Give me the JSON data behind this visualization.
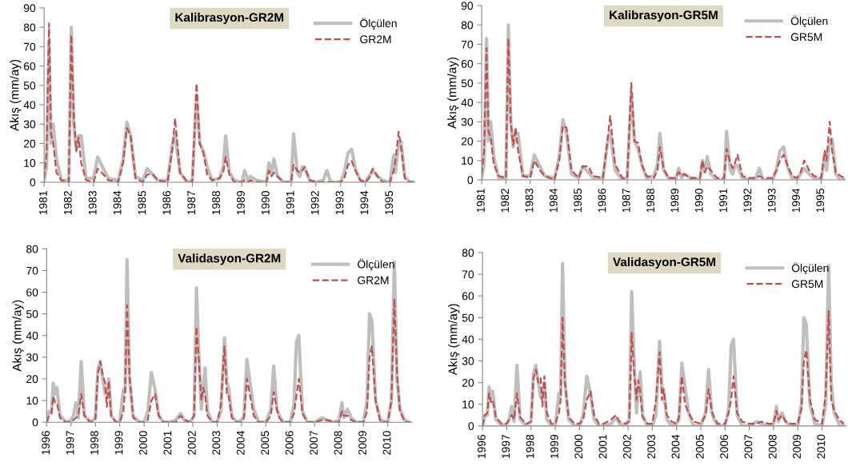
{
  "chart_data": [
    {
      "type": "line",
      "title": "Kalibrasyon-GR2M",
      "ylabel": "Akış (mm/ay)",
      "xlim": [
        1981,
        1996
      ],
      "ylim": [
        0,
        90
      ],
      "yticks": [
        0,
        10,
        20,
        30,
        40,
        50,
        60,
        70,
        80,
        90
      ],
      "xticks": [
        {
          "value": 1981,
          "label": "1981"
        },
        {
          "value": 1982,
          "label": "1982"
        },
        {
          "value": 1983,
          "label": "1983"
        },
        {
          "value": 1984,
          "label": "1984"
        },
        {
          "value": 1985,
          "label": "1985"
        },
        {
          "value": 1986,
          "label": "1986"
        },
        {
          "value": 1987,
          "label": "1987"
        },
        {
          "value": 1988,
          "label": "1988"
        },
        {
          "value": 1989,
          "label": "1989"
        },
        {
          "value": 1990,
          "label": "1990"
        },
        {
          "value": 1991,
          "label": "1991"
        },
        {
          "value": 1992,
          "label": "1992"
        },
        {
          "value": 1993,
          "label": "1993"
        },
        {
          "value": 1994,
          "label": "1994"
        },
        {
          "value": 1995,
          "label": "1995"
        }
      ],
      "grid": false,
      "legend": "top right",
      "x": [
        1981.0,
        1981.1,
        1981.2,
        1981.28,
        1981.37,
        1981.5,
        1981.7,
        1982.0,
        1982.1,
        1982.2,
        1982.3,
        1982.4,
        1982.5,
        1982.7,
        1983.0,
        1983.17,
        1983.4,
        1983.6,
        1984.0,
        1984.2,
        1984.35,
        1984.5,
        1984.7,
        1985.0,
        1985.17,
        1985.4,
        1985.6,
        1986.0,
        1986.2,
        1986.3,
        1986.5,
        1986.8,
        1987.0,
        1987.17,
        1987.3,
        1987.45,
        1987.6,
        1987.8,
        1988.1,
        1988.25,
        1988.35,
        1988.5,
        1988.7,
        1989.0,
        1989.12,
        1989.25,
        1989.35,
        1989.6,
        1990.0,
        1990.1,
        1990.2,
        1990.3,
        1990.45,
        1990.7,
        1991.0,
        1991.1,
        1991.25,
        1991.35,
        1991.45,
        1991.55,
        1991.75,
        1992.0,
        1992.3,
        1992.45,
        1992.6,
        1993.0,
        1993.15,
        1993.3,
        1993.45,
        1993.6,
        1993.8,
        1994.0,
        1994.15,
        1994.3,
        1994.5,
        1994.7,
        1995.0,
        1995.15,
        1995.22,
        1995.35,
        1995.45,
        1995.6,
        1995.8,
        1995.95
      ],
      "series": [
        {
          "name": "Ölçülen",
          "color": "#bfbfbf",
          "line_style": "solid",
          "values": [
            1,
            8,
            73,
            20,
            30,
            12,
            1,
            1,
            80,
            30,
            17,
            24,
            24,
            2,
            2,
            13,
            7,
            2,
            1,
            12,
            31,
            24,
            3,
            1,
            7,
            4,
            1,
            1,
            20,
            25,
            5,
            0,
            1,
            45,
            20,
            16,
            8,
            1,
            2,
            8,
            24,
            5,
            1,
            0,
            6,
            1,
            3,
            1,
            0,
            10,
            4,
            12,
            3,
            0,
            0,
            25,
            5,
            3,
            8,
            7,
            1,
            0,
            1,
            6,
            0,
            0,
            5,
            15,
            17,
            7,
            1,
            0,
            3,
            6,
            3,
            1,
            0,
            14,
            5,
            20,
            21,
            3,
            0,
            0
          ]
        },
        {
          "name": "GR2M",
          "color": "#c0504d",
          "line_style": "dashed",
          "values": [
            2,
            15,
            82,
            25,
            20,
            5,
            1,
            0,
            76,
            35,
            16,
            23,
            10,
            1,
            0,
            7,
            4,
            1,
            0,
            10,
            28,
            24,
            2,
            0,
            4,
            4,
            1,
            0,
            18,
            33,
            5,
            0,
            0,
            51,
            20,
            15,
            4,
            1,
            2,
            5,
            13,
            4,
            0,
            0,
            1,
            0,
            1,
            0,
            0,
            6,
            3,
            5,
            3,
            0,
            0,
            9,
            6,
            5,
            6,
            8,
            1,
            0,
            0,
            0,
            0,
            0,
            2,
            9,
            11,
            6,
            1,
            0,
            2,
            7,
            3,
            0,
            0,
            6,
            11,
            26,
            18,
            2,
            0,
            0
          ]
        }
      ]
    },
    {
      "type": "line",
      "title": "Kalibrasyon-GR5M",
      "ylabel": "Akış (mm/ay)",
      "xlim": [
        1981,
        1996
      ],
      "ylim": [
        0,
        90
      ],
      "yticks": [
        0,
        10,
        20,
        30,
        40,
        50,
        60,
        70,
        80,
        90
      ],
      "xticks": [
        {
          "value": 1981,
          "label": "1981"
        },
        {
          "value": 1982,
          "label": "1982"
        },
        {
          "value": 1983,
          "label": "1983"
        },
        {
          "value": 1984,
          "label": "1984"
        },
        {
          "value": 1985,
          "label": "1985"
        },
        {
          "value": 1986,
          "label": "1986"
        },
        {
          "value": 1987,
          "label": "1987"
        },
        {
          "value": 1988,
          "label": "1988"
        },
        {
          "value": 1989,
          "label": "1989"
        },
        {
          "value": 1990,
          "label": "1990"
        },
        {
          "value": 1991,
          "label": "1991"
        },
        {
          "value": 1992,
          "label": "1992"
        },
        {
          "value": 1993,
          "label": "1993"
        },
        {
          "value": 1994,
          "label": "1994"
        },
        {
          "value": 1995,
          "label": "1995"
        }
      ],
      "grid": false,
      "legend": "top right",
      "x": [
        1981.0,
        1981.1,
        1981.2,
        1981.28,
        1981.37,
        1981.5,
        1981.7,
        1982.0,
        1982.1,
        1982.2,
        1982.3,
        1982.4,
        1982.5,
        1982.7,
        1983.0,
        1983.17,
        1983.4,
        1983.6,
        1984.0,
        1984.2,
        1984.35,
        1984.5,
        1984.7,
        1985.0,
        1985.17,
        1985.4,
        1985.6,
        1986.0,
        1986.2,
        1986.3,
        1986.5,
        1986.8,
        1987.0,
        1987.17,
        1987.3,
        1987.45,
        1987.6,
        1987.8,
        1988.1,
        1988.25,
        1988.35,
        1988.5,
        1988.7,
        1989.0,
        1989.12,
        1989.25,
        1989.35,
        1989.6,
        1990.0,
        1990.1,
        1990.2,
        1990.3,
        1990.45,
        1990.7,
        1991.0,
        1991.1,
        1991.25,
        1991.35,
        1991.45,
        1991.55,
        1991.75,
        1992.0,
        1992.3,
        1992.45,
        1992.6,
        1993.0,
        1993.15,
        1993.3,
        1993.45,
        1993.6,
        1993.8,
        1994.0,
        1994.15,
        1994.3,
        1994.5,
        1994.7,
        1995.0,
        1995.15,
        1995.22,
        1995.35,
        1995.45,
        1995.6,
        1995.8,
        1995.95
      ],
      "series": [
        {
          "name": "Ölçülen",
          "color": "#bfbfbf",
          "line_style": "solid",
          "values": [
            1,
            8,
            73,
            20,
            30,
            12,
            1,
            1,
            80,
            30,
            17,
            24,
            24,
            2,
            2,
            13,
            7,
            2,
            1,
            12,
            31,
            24,
            3,
            1,
            7,
            4,
            1,
            1,
            20,
            25,
            5,
            0,
            1,
            45,
            20,
            16,
            8,
            1,
            2,
            8,
            24,
            5,
            1,
            0,
            6,
            1,
            3,
            1,
            0,
            10,
            4,
            12,
            3,
            0,
            0,
            25,
            5,
            3,
            8,
            7,
            1,
            0,
            1,
            6,
            0,
            0,
            5,
            15,
            17,
            7,
            1,
            0,
            3,
            6,
            3,
            1,
            0,
            14,
            5,
            20,
            21,
            3,
            0,
            0
          ]
        },
        {
          "name": "GR5M",
          "color": "#c0504d",
          "line_style": "dashed",
          "values": [
            3,
            15,
            68,
            25,
            22,
            8,
            2,
            1,
            73,
            30,
            18,
            27,
            15,
            2,
            1,
            10,
            5,
            2,
            0,
            10,
            28,
            27,
            5,
            1,
            7,
            7,
            2,
            1,
            22,
            33,
            8,
            1,
            1,
            50,
            20,
            19,
            8,
            2,
            1,
            5,
            17,
            6,
            1,
            1,
            4,
            2,
            3,
            1,
            1,
            10,
            4,
            7,
            5,
            1,
            1,
            16,
            9,
            6,
            9,
            13,
            2,
            1,
            1,
            2,
            1,
            1,
            5,
            10,
            13,
            8,
            2,
            1,
            4,
            10,
            5,
            2,
            1,
            15,
            10,
            30,
            15,
            4,
            2,
            1
          ]
        }
      ]
    },
    {
      "type": "line",
      "title": "Validasyon-GR2M",
      "ylabel": "Akış (mm/ay)",
      "xlim": [
        1996,
        2011
      ],
      "ylim": [
        0,
        80
      ],
      "yticks": [
        0,
        10,
        20,
        30,
        40,
        50,
        60,
        70,
        80
      ],
      "xticks": [
        {
          "value": 1996,
          "label": "1996"
        },
        {
          "value": 1997,
          "label": "1997"
        },
        {
          "value": 1998,
          "label": "1998"
        },
        {
          "value": 1999,
          "label": "1999"
        },
        {
          "value": 2000,
          "label": "2000"
        },
        {
          "value": 2001,
          "label": "2001"
        },
        {
          "value": 2002,
          "label": "2002"
        },
        {
          "value": 2003,
          "label": "2003"
        },
        {
          "value": 2004,
          "label": "2004"
        },
        {
          "value": 2005,
          "label": "2005"
        },
        {
          "value": 2006,
          "label": "2006"
        },
        {
          "value": 2007,
          "label": "2007"
        },
        {
          "value": 2008,
          "label": "2008"
        },
        {
          "value": 2009,
          "label": "2009"
        },
        {
          "value": 2010,
          "label": "2010"
        }
      ],
      "grid": false,
      "legend": "top right",
      "x": [
        1996.0,
        1996.1,
        1996.2,
        1996.27,
        1996.35,
        1996.42,
        1996.55,
        1996.8,
        1997.0,
        1997.1,
        1997.2,
        1997.3,
        1997.42,
        1997.55,
        1997.8,
        1998.0,
        1998.1,
        1998.2,
        1998.3,
        1998.4,
        1998.47,
        1998.55,
        1998.65,
        1998.85,
        1999.0,
        1999.15,
        1999.22,
        1999.3,
        1999.4,
        1999.55,
        1999.8,
        2000.0,
        2000.15,
        2000.3,
        2000.45,
        2000.6,
        2000.8,
        2001.0,
        2001.3,
        2001.5,
        2001.65,
        2001.9,
        2002.05,
        2002.15,
        2002.25,
        2002.35,
        2002.42,
        2002.5,
        2002.6,
        2002.8,
        2003.0,
        2003.15,
        2003.3,
        2003.4,
        2003.47,
        2003.6,
        2003.8,
        2004.0,
        2004.1,
        2004.22,
        2004.35,
        2004.5,
        2004.7,
        2005.0,
        2005.2,
        2005.32,
        2005.45,
        2005.55,
        2005.7,
        2006.0,
        2006.15,
        2006.25,
        2006.35,
        2006.5,
        2006.7,
        2007.0,
        2007.3,
        2007.5,
        2007.8,
        2008.0,
        2008.12,
        2008.2,
        2008.35,
        2008.5,
        2008.7,
        2009.0,
        2009.15,
        2009.25,
        2009.35,
        2009.5,
        2009.7,
        2010.0,
        2010.15,
        2010.27,
        2010.38,
        2010.5,
        2010.7,
        2010.9
      ],
      "series": [
        {
          "name": "Ölçülen",
          "color": "#bfbfbf",
          "line_style": "solid",
          "values": [
            0,
            5,
            5,
            18,
            13,
            16,
            3,
            0,
            1,
            3,
            9,
            2,
            28,
            3,
            0,
            2,
            24,
            28,
            20,
            13,
            13,
            20,
            3,
            0,
            0,
            15,
            14,
            75,
            20,
            3,
            0,
            0,
            5,
            23,
            15,
            3,
            0,
            0,
            1,
            4,
            1,
            0,
            3,
            62,
            30,
            6,
            15,
            25,
            5,
            0,
            0,
            5,
            39,
            18,
            16,
            3,
            0,
            1,
            3,
            29,
            18,
            6,
            0,
            0,
            6,
            26,
            6,
            3,
            0,
            0,
            8,
            37,
            40,
            5,
            0,
            0,
            2,
            1,
            0,
            1,
            9,
            2,
            6,
            2,
            0,
            0,
            10,
            50,
            47,
            10,
            1,
            0,
            10,
            74,
            20,
            6,
            1,
            0
          ]
        },
        {
          "name": "GR2M",
          "color": "#c0504d",
          "line_style": "dashed",
          "values": [
            0,
            3,
            4,
            12,
            9,
            9,
            2,
            0,
            0,
            1,
            2,
            3,
            13,
            3,
            0,
            1,
            22,
            28,
            22,
            18,
            7,
            19,
            3,
            0,
            0,
            5,
            15,
            54,
            22,
            2,
            0,
            0,
            1,
            10,
            13,
            3,
            0,
            0,
            0,
            3,
            1,
            0,
            3,
            44,
            28,
            10,
            16,
            13,
            3,
            0,
            0,
            8,
            35,
            12,
            12,
            2,
            0,
            0,
            2,
            20,
            12,
            3,
            0,
            0,
            3,
            14,
            6,
            2,
            0,
            0,
            4,
            12,
            20,
            4,
            0,
            0,
            1,
            1,
            0,
            0,
            5,
            3,
            3,
            1,
            0,
            0,
            5,
            30,
            35,
            10,
            0,
            0,
            10,
            57,
            22,
            5,
            0,
            0
          ]
        }
      ]
    },
    {
      "type": "line",
      "title": "Validasyon-GR5M",
      "ylabel": "Akış (mm/ay)",
      "xlim": [
        1996,
        2011
      ],
      "ylim": [
        0,
        80
      ],
      "yticks": [
        0,
        10,
        20,
        30,
        40,
        50,
        60,
        70,
        80
      ],
      "xticks": [
        {
          "value": 1996,
          "label": "1996"
        },
        {
          "value": 1997,
          "label": "1997"
        },
        {
          "value": 1998,
          "label": "1998"
        },
        {
          "value": 1999,
          "label": "1999"
        },
        {
          "value": 2000,
          "label": "2000"
        },
        {
          "value": 2001,
          "label": "2001"
        },
        {
          "value": 2002,
          "label": "2002"
        },
        {
          "value": 2003,
          "label": "2003"
        },
        {
          "value": 2004,
          "label": "2004"
        },
        {
          "value": 2005,
          "label": "2005"
        },
        {
          "value": 2006,
          "label": "2006"
        },
        {
          "value": 2007,
          "label": "2007"
        },
        {
          "value": 2008,
          "label": "2008"
        },
        {
          "value": 2009,
          "label": "2009"
        },
        {
          "value": 2010,
          "label": "2010"
        }
      ],
      "grid": false,
      "legend": "top right",
      "x": [
        1996.0,
        1996.1,
        1996.2,
        1996.27,
        1996.35,
        1996.42,
        1996.55,
        1996.8,
        1997.0,
        1997.1,
        1997.2,
        1997.3,
        1997.42,
        1997.55,
        1997.8,
        1998.0,
        1998.1,
        1998.2,
        1998.3,
        1998.4,
        1998.47,
        1998.55,
        1998.65,
        1998.85,
        1999.0,
        1999.15,
        1999.22,
        1999.3,
        1999.4,
        1999.55,
        1999.8,
        2000.0,
        2000.15,
        2000.3,
        2000.45,
        2000.6,
        2000.8,
        2001.0,
        2001.3,
        2001.5,
        2001.65,
        2001.9,
        2002.05,
        2002.15,
        2002.25,
        2002.35,
        2002.42,
        2002.5,
        2002.6,
        2002.8,
        2003.0,
        2003.15,
        2003.3,
        2003.4,
        2003.47,
        2003.6,
        2003.8,
        2004.0,
        2004.1,
        2004.22,
        2004.35,
        2004.5,
        2004.7,
        2005.0,
        2005.2,
        2005.32,
        2005.45,
        2005.55,
        2005.7,
        2006.0,
        2006.15,
        2006.25,
        2006.35,
        2006.5,
        2006.7,
        2007.0,
        2007.3,
        2007.5,
        2007.8,
        2008.0,
        2008.12,
        2008.2,
        2008.35,
        2008.5,
        2008.7,
        2009.0,
        2009.15,
        2009.25,
        2009.35,
        2009.5,
        2009.7,
        2010.0,
        2010.15,
        2010.27,
        2010.38,
        2010.5,
        2010.7,
        2010.9
      ],
      "series": [
        {
          "name": "Ölçülen",
          "color": "#bfbfbf",
          "line_style": "solid",
          "values": [
            0,
            5,
            5,
            18,
            13,
            16,
            3,
            0,
            1,
            3,
            9,
            2,
            28,
            3,
            0,
            2,
            24,
            28,
            20,
            13,
            13,
            20,
            3,
            0,
            0,
            15,
            14,
            75,
            20,
            3,
            0,
            0,
            5,
            23,
            15,
            3,
            0,
            0,
            1,
            4,
            1,
            0,
            3,
            62,
            30,
            6,
            15,
            25,
            5,
            0,
            0,
            5,
            39,
            18,
            16,
            3,
            0,
            1,
            3,
            29,
            18,
            6,
            0,
            0,
            6,
            26,
            6,
            3,
            0,
            0,
            8,
            37,
            40,
            5,
            0,
            0,
            2,
            1,
            0,
            1,
            9,
            2,
            6,
            2,
            0,
            0,
            10,
            50,
            47,
            10,
            1,
            0,
            10,
            74,
            20,
            6,
            1,
            0
          ]
        },
        {
          "name": "GR5M",
          "color": "#c0504d",
          "line_style": "dashed",
          "values": [
            0,
            5,
            6,
            15,
            11,
            12,
            4,
            1,
            1,
            3,
            5,
            3,
            15,
            4,
            1,
            2,
            22,
            26,
            20,
            22,
            9,
            23,
            6,
            1,
            1,
            6,
            12,
            50,
            20,
            4,
            1,
            1,
            3,
            12,
            16,
            5,
            1,
            1,
            3,
            5,
            2,
            1,
            2,
            43,
            25,
            12,
            21,
            16,
            4,
            1,
            1,
            12,
            34,
            12,
            17,
            5,
            2,
            1,
            4,
            23,
            10,
            6,
            2,
            1,
            5,
            17,
            7,
            4,
            1,
            1,
            6,
            12,
            23,
            6,
            2,
            1,
            1,
            2,
            1,
            1,
            7,
            3,
            5,
            2,
            1,
            1,
            8,
            30,
            35,
            12,
            3,
            1,
            15,
            53,
            12,
            7,
            3,
            1
          ]
        }
      ]
    }
  ]
}
